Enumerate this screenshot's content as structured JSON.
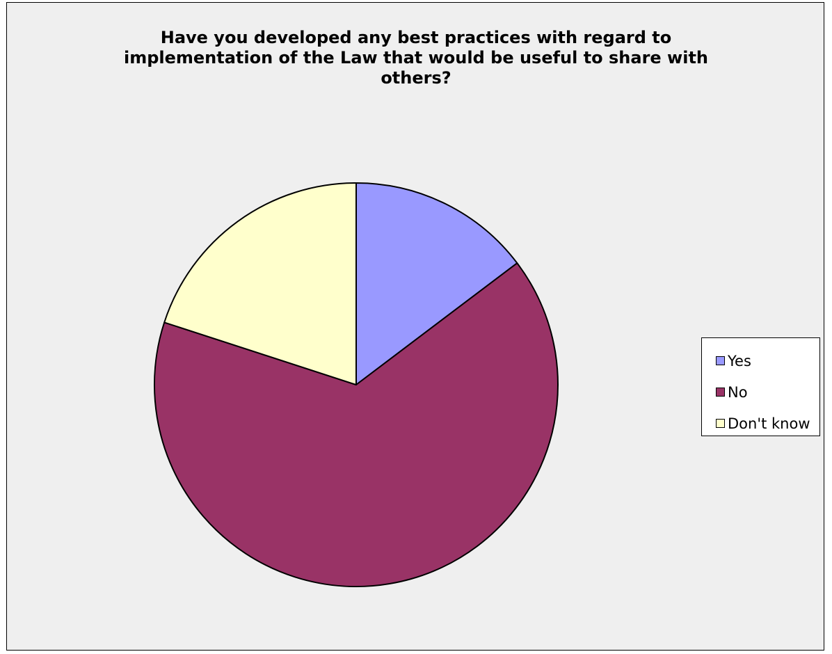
{
  "chart_data": {
    "type": "pie",
    "title": "Have you developed any best practices with regard to implementation of the Law that would be useful to share with others?",
    "categories": [
      "Yes",
      "No",
      "Don't know"
    ],
    "values": [
      14.7,
      65.3,
      20.0
    ],
    "colors": [
      "#9999ff",
      "#993366",
      "#ffffcc"
    ],
    "start_angle_deg": 0,
    "direction": "clockwise",
    "legend_position": "right"
  }
}
